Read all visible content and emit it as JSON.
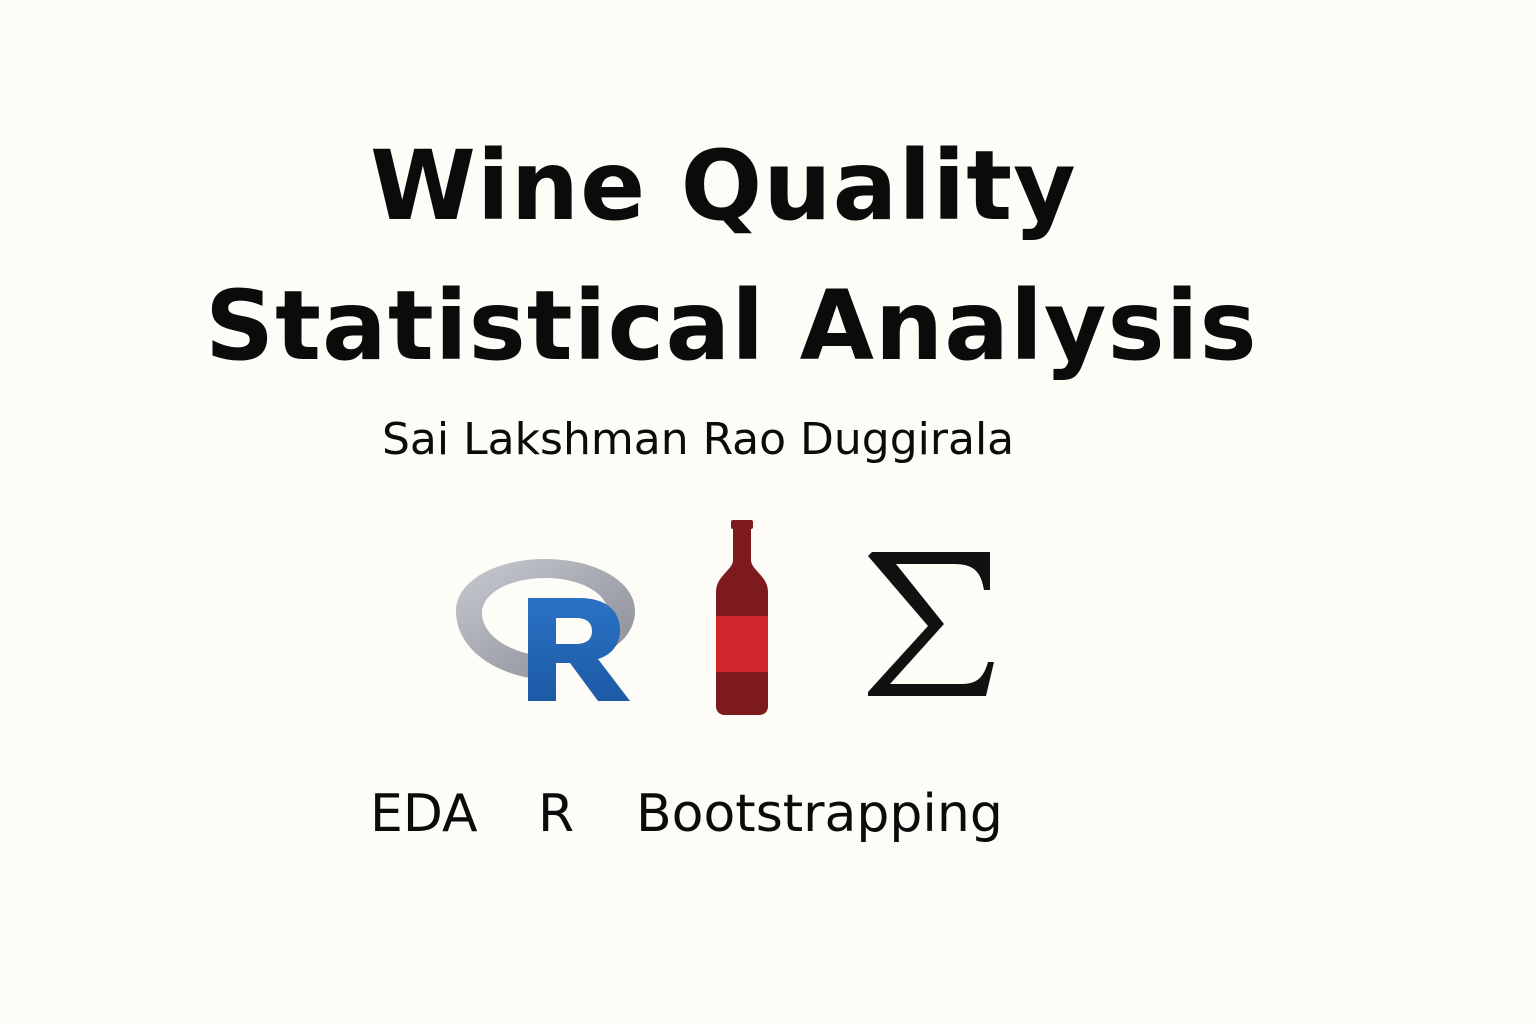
{
  "title": {
    "line1": "Wine Quality",
    "line2": "Statistical Analysis"
  },
  "author": "Sai Lakshman Rao Duggirala",
  "icons": [
    {
      "name": "r-logo-icon",
      "letter": "R",
      "ring_color": "#a9abb2",
      "letter_color": "#2165b7"
    },
    {
      "name": "wine-bottle-icon",
      "bottle_color": "#7c1a1d",
      "label_color": "#d3262d"
    },
    {
      "name": "sigma-icon",
      "glyph": "Σ"
    }
  ],
  "tags": [
    "EDA",
    "R",
    "Bootstrapping"
  ],
  "colors": {
    "background": "#fdfcf6",
    "text": "#0b0b0b"
  }
}
